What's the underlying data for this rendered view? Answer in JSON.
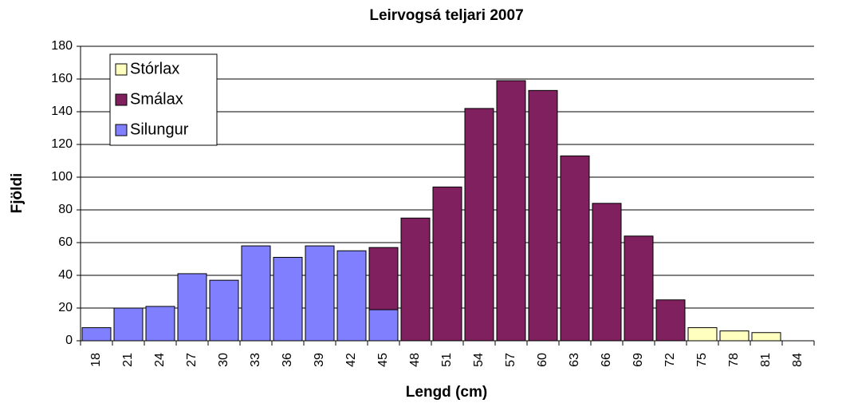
{
  "chart_data": {
    "type": "bar",
    "stacked": true,
    "title": "Leirvogsá teljari 2007",
    "xlabel": "Lengd (cm)",
    "ylabel": "Fjöldi",
    "categories": [
      "18",
      "21",
      "24",
      "27",
      "30",
      "33",
      "36",
      "39",
      "42",
      "45",
      "48",
      "51",
      "54",
      "57",
      "60",
      "63",
      "66",
      "69",
      "72",
      "75",
      "78",
      "81",
      "84"
    ],
    "series": [
      {
        "name": "Silungur",
        "color": "#8080ff",
        "values": [
          8,
          20,
          21,
          41,
          37,
          58,
          51,
          58,
          55,
          19,
          null,
          null,
          null,
          null,
          null,
          null,
          null,
          null,
          null,
          null,
          null,
          null,
          null
        ]
      },
      {
        "name": "Smálax",
        "color": "#80205f",
        "values": [
          null,
          null,
          null,
          null,
          null,
          null,
          null,
          null,
          null,
          38,
          75,
          94,
          142,
          159,
          153,
          113,
          84,
          64,
          25,
          null,
          null,
          null,
          null
        ]
      },
      {
        "name": "Stórlax",
        "color": "#ffffc0",
        "values": [
          null,
          null,
          null,
          null,
          null,
          null,
          null,
          null,
          null,
          null,
          null,
          null,
          null,
          null,
          null,
          null,
          null,
          null,
          null,
          8,
          6,
          5,
          null
        ]
      }
    ],
    "ylim": [
      0,
      180
    ],
    "yticks": [
      0,
      20,
      40,
      60,
      80,
      100,
      120,
      140,
      160,
      180
    ],
    "grid": true
  }
}
